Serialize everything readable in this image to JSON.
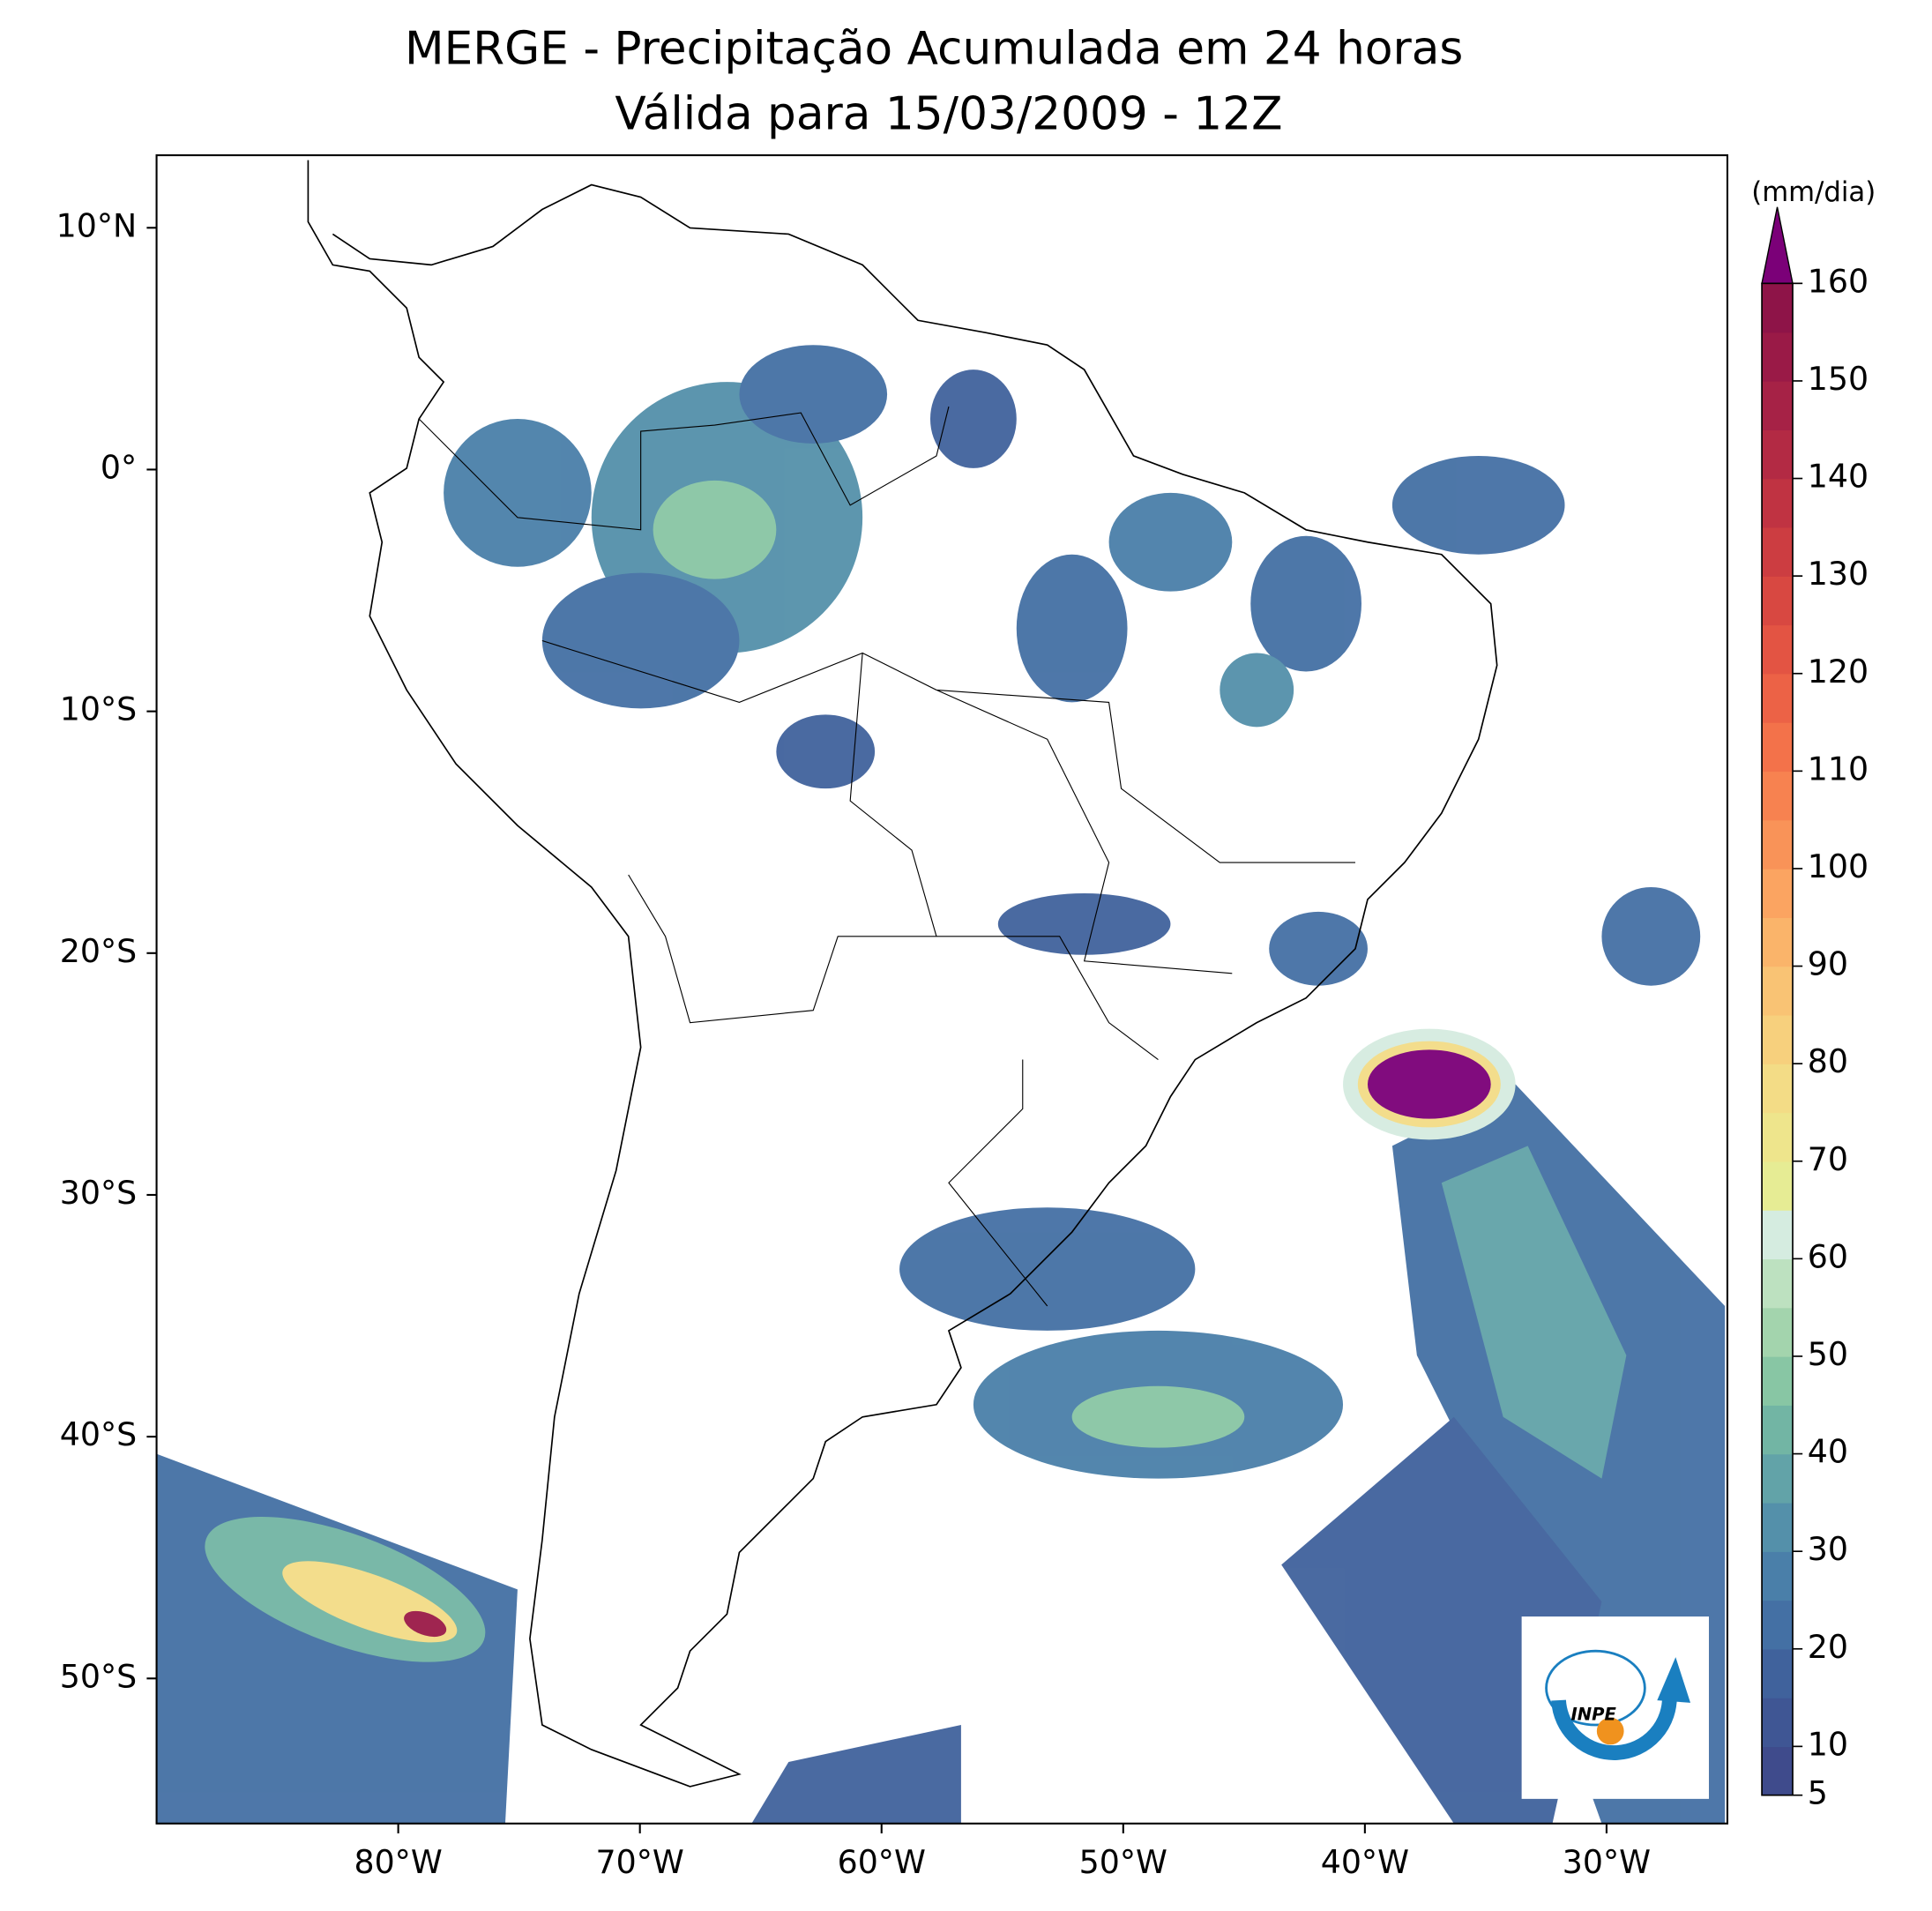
{
  "chart_data": {
    "type": "map",
    "title": "MERGE - Precipitação Acumulada em 24 horas",
    "subtitle": "Válida para 15/03/2009 - 12Z",
    "xlim": [
      -90,
      -25
    ],
    "ylim": [
      -56,
      13
    ],
    "xticks": [
      {
        "value": -80,
        "label": "80°W"
      },
      {
        "value": -70,
        "label": "70°W"
      },
      {
        "value": -60,
        "label": "60°W"
      },
      {
        "value": -50,
        "label": "50°W"
      },
      {
        "value": -40,
        "label": "40°W"
      },
      {
        "value": -30,
        "label": "30°W"
      }
    ],
    "yticks": [
      {
        "value": 10,
        "label": "10°N"
      },
      {
        "value": 0,
        "label": "0°"
      },
      {
        "value": -10,
        "label": "10°S"
      },
      {
        "value": -20,
        "label": "20°S"
      },
      {
        "value": -30,
        "label": "30°S"
      },
      {
        "value": -40,
        "label": "40°S"
      },
      {
        "value": -50,
        "label": "50°S"
      }
    ],
    "colorbar": {
      "label": "(mm/dia)",
      "lim": [
        5,
        160
      ],
      "ticks": [
        5,
        10,
        20,
        30,
        40,
        50,
        60,
        70,
        80,
        90,
        100,
        110,
        120,
        130,
        140,
        150,
        160
      ],
      "levels": [
        5,
        10,
        15,
        20,
        25,
        30,
        35,
        40,
        45,
        50,
        55,
        60,
        65,
        70,
        75,
        80,
        85,
        90,
        95,
        100,
        105,
        110,
        115,
        120,
        125,
        130,
        135,
        140,
        145,
        150,
        155,
        160
      ],
      "colors": [
        "#3f4b8c",
        "#3f5694",
        "#40629c",
        "#4470a4",
        "#4a7fa9",
        "#5490aa",
        "#62a3a8",
        "#72b5a4",
        "#88c6a4",
        "#a3d4ad",
        "#bde1c0",
        "#d5ece0",
        "#e6ec94",
        "#eee58c",
        "#f3dc86",
        "#f7d07d",
        "#f9c374",
        "#fab46a",
        "#fba461",
        "#f99358",
        "#f78250",
        "#f3724a",
        "#ec6246",
        "#e35443",
        "#d84841",
        "#cc3d41",
        "#c03342",
        "#b32a44",
        "#a62246",
        "#9a1a47",
        "#8e1448"
      ],
      "extend_color": "#7b0078"
    },
    "logo": "INPE"
  }
}
